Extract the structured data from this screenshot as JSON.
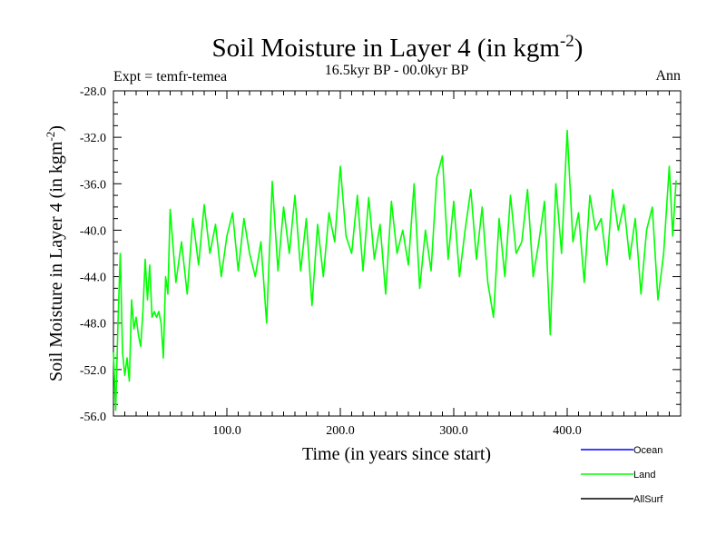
{
  "chart_data": {
    "type": "line",
    "title": "Soil Moisture in Layer 4 (in kgm",
    "title_sup": "-2",
    "title_close": ")",
    "subtitle": "16.5kyr BP - 00.0kyr BP",
    "expt_label": "Expt = temfr-temea",
    "season_label": "Ann",
    "xlabel": "Time (in years since start)",
    "ylabel": "Soil Moisture in Layer 4 (in kgm",
    "ylabel_sup": "-2",
    "ylabel_close": ")",
    "xlim": [
      0,
      500
    ],
    "ylim": [
      -56,
      -28
    ],
    "x_ticks": [
      100,
      200,
      300,
      400
    ],
    "x_tick_labels": [
      "100.0",
      "200.0",
      "300.0",
      "400.0"
    ],
    "y_ticks": [
      -28,
      -32,
      -36,
      -40,
      -44,
      -48,
      -52,
      -56
    ],
    "y_tick_labels": [
      "-28.0",
      "-32.0",
      "-36.0",
      "-40.0",
      "-44.0",
      "-48.0",
      "-52.0",
      "-56.0"
    ],
    "legend": [
      {
        "name": "Ocean",
        "color": "#0000ff"
      },
      {
        "name": "Land",
        "color": "#00ff00"
      },
      {
        "name": "AllSurf",
        "color": "#000000"
      }
    ],
    "series": [
      {
        "name": "Land",
        "color": "#00ff00",
        "x": [
          0,
          2,
          4,
          6,
          8,
          10,
          12,
          14,
          16,
          18,
          20,
          22,
          24,
          26,
          28,
          30,
          32,
          34,
          36,
          38,
          40,
          42,
          44,
          46,
          48,
          50,
          55,
          60,
          65,
          70,
          75,
          80,
          85,
          90,
          95,
          100,
          105,
          110,
          115,
          120,
          125,
          130,
          135,
          140,
          145,
          150,
          155,
          160,
          165,
          170,
          175,
          180,
          185,
          190,
          195,
          200,
          205,
          210,
          215,
          220,
          225,
          230,
          235,
          240,
          245,
          250,
          255,
          260,
          265,
          270,
          275,
          280,
          285,
          290,
          295,
          300,
          305,
          310,
          315,
          320,
          325,
          330,
          335,
          340,
          345,
          350,
          355,
          360,
          365,
          370,
          375,
          380,
          385,
          390,
          395,
          400,
          405,
          410,
          415,
          420,
          425,
          430,
          435,
          440,
          445,
          450,
          455,
          460,
          465,
          470,
          475,
          480,
          485,
          490,
          493,
          496
        ],
        "values": [
          -50.5,
          -55.5,
          -48,
          -42,
          -50.5,
          -52.5,
          -51,
          -53,
          -46,
          -48.5,
          -47.5,
          -49,
          -50,
          -47,
          -42.5,
          -46,
          -43,
          -47.5,
          -47,
          -47.5,
          -47,
          -48,
          -51,
          -44,
          -45.5,
          -38.2,
          -44.5,
          -41,
          -45.5,
          -39,
          -43,
          -37.8,
          -42,
          -39.5,
          -44,
          -40.5,
          -38.5,
          -43.5,
          -39,
          -42,
          -44,
          -41,
          -48,
          -35.8,
          -43.5,
          -38,
          -42,
          -37,
          -43.5,
          -39,
          -46.5,
          -39.5,
          -44,
          -38.5,
          -41,
          -34.5,
          -40.5,
          -42,
          -37,
          -43.5,
          -37.2,
          -42.5,
          -39.5,
          -45.5,
          -37.5,
          -42,
          -40,
          -43,
          -36,
          -45,
          -40,
          -43.5,
          -35.5,
          -33.6,
          -42.5,
          -37.5,
          -44,
          -40,
          -36.5,
          -42.5,
          -38,
          -44.5,
          -47.5,
          -39,
          -44,
          -37,
          -42,
          -41,
          -36.5,
          -44,
          -41,
          -37.5,
          -49,
          -36,
          -42,
          -31.4,
          -41,
          -38.5,
          -44.5,
          -37,
          -40,
          -39,
          -43,
          -36.5,
          -40,
          -37.8,
          -42.5,
          -39,
          -45.5,
          -40,
          -38,
          -46,
          -42,
          -34.5,
          -40.5,
          -35.7
        ]
      }
    ]
  }
}
